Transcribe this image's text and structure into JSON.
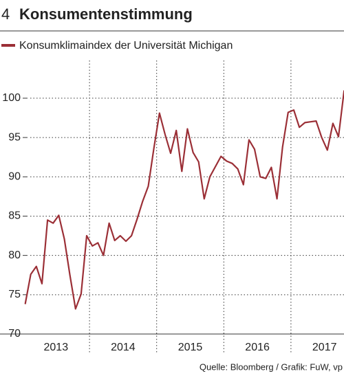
{
  "chart_data": {
    "type": "line",
    "number": "4",
    "title": "Konsumentenstimmung",
    "source": "Quelle: Bloomberg / Grafik: FuW, vp",
    "x": [
      2013.042,
      2013.125,
      2013.208,
      2013.292,
      2013.375,
      2013.458,
      2013.542,
      2013.625,
      2013.708,
      2013.792,
      2013.875,
      2013.958,
      2014.042,
      2014.125,
      2014.208,
      2014.292,
      2014.375,
      2014.458,
      2014.542,
      2014.625,
      2014.708,
      2014.792,
      2014.875,
      2014.958,
      2015.042,
      2015.125,
      2015.208,
      2015.292,
      2015.375,
      2015.458,
      2015.542,
      2015.625,
      2015.708,
      2015.792,
      2015.875,
      2015.958,
      2016.042,
      2016.125,
      2016.208,
      2016.292,
      2016.375,
      2016.458,
      2016.542,
      2016.625,
      2016.708,
      2016.792,
      2016.875,
      2016.958,
      2017.042,
      2017.125,
      2017.208,
      2017.292,
      2017.375,
      2017.458,
      2017.542,
      2017.625,
      2017.708,
      2017.792
    ],
    "series": [
      {
        "name": "Konsumklimaindex der Universität Michigan",
        "color": "#9b2f36",
        "values": [
          73.8,
          77.6,
          78.6,
          76.4,
          84.5,
          84.1,
          85.1,
          82.1,
          77.5,
          73.2,
          75.1,
          82.5,
          81.2,
          81.6,
          80.0,
          84.1,
          81.9,
          82.5,
          81.8,
          82.5,
          84.6,
          86.9,
          88.8,
          93.6,
          98.1,
          95.4,
          93.0,
          95.9,
          90.7,
          96.1,
          93.1,
          91.9,
          87.2,
          90.0,
          91.3,
          92.6,
          92.0,
          91.7,
          91.0,
          89.0,
          94.7,
          93.5,
          90.0,
          89.8,
          91.2,
          87.2,
          93.8,
          98.2,
          98.5,
          96.3,
          96.9,
          97.0,
          97.1,
          95.0,
          93.4,
          96.8,
          95.1,
          101.0
        ]
      }
    ],
    "xlim": [
      2012.667,
      2017.79
    ],
    "xticks": [
      {
        "value": 2013.5,
        "label": "2013"
      },
      {
        "value": 2014.5,
        "label": "2014"
      },
      {
        "value": 2015.5,
        "label": "2015"
      },
      {
        "value": 2016.5,
        "label": "2016"
      },
      {
        "value": 2017.5,
        "label": "2017"
      }
    ],
    "xgrid": [
      2014,
      2015,
      2016,
      2017
    ],
    "ylim": [
      70,
      104.8
    ],
    "yticks": [
      70,
      75,
      80,
      85,
      90,
      95,
      100
    ],
    "grid": true
  }
}
